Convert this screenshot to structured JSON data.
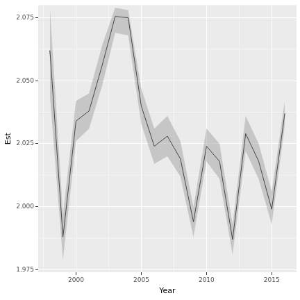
{
  "chart_data": {
    "type": "line",
    "x_label": "Year",
    "y_label": "Est",
    "x": [
      1998,
      1999,
      2000,
      2001,
      2002,
      2003,
      2004,
      2005,
      2006,
      2007,
      2008,
      2009,
      2010,
      2011,
      2012,
      2013,
      2014,
      2015,
      2016
    ],
    "values": [
      2.062,
      1.988,
      2.034,
      2.038,
      2.056,
      2.0755,
      2.075,
      2.04,
      2.024,
      2.028,
      2.019,
      1.994,
      2.024,
      2.018,
      1.987,
      2.029,
      2.018,
      1.999,
      2.037
    ],
    "lower": [
      2.044,
      1.979,
      2.026,
      2.031,
      2.048,
      2.069,
      2.068,
      2.033,
      2.017,
      2.02,
      2.012,
      1.988,
      2.018,
      2.011,
      1.981,
      2.022,
      2.011,
      1.993,
      2.032
    ],
    "upper": [
      2.079,
      1.997,
      2.042,
      2.045,
      2.064,
      2.079,
      2.078,
      2.047,
      2.031,
      2.036,
      2.026,
      2.0,
      2.031,
      2.025,
      1.993,
      2.036,
      2.025,
      2.006,
      2.042
    ],
    "color": "#000000",
    "xlim": [
      1997.1,
      2016.9
    ],
    "xticks": [
      2000,
      2005,
      2010,
      2015
    ],
    "ylim": [
      1.974,
      2.08
    ],
    "yticks": [
      1.975,
      {
        "value": 2,
        "label": "2.000"
      },
      2.025,
      {
        "value": 2.05,
        "label": "2.050"
      },
      2.075
    ],
    "grid": true
  }
}
